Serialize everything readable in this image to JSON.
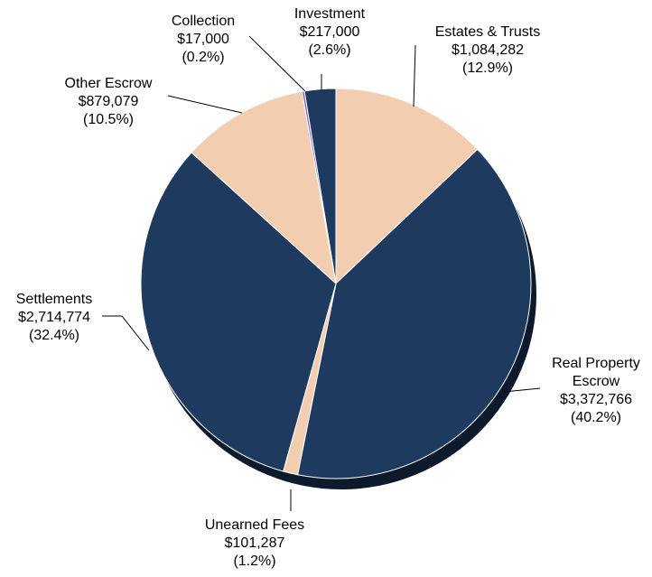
{
  "chart_data": {
    "type": "pie",
    "categories": [
      "Estates & Trusts",
      "Real Property Escrow",
      "Unearned Fees",
      "Settlements",
      "Other Escrow",
      "Collection",
      "Investment"
    ],
    "values": [
      1084282,
      3372766,
      101287,
      2714774,
      879079,
      17000,
      217000
    ],
    "value_labels": [
      "$1,084,282",
      "$3,372,766",
      "$101,287",
      "$2,714,774",
      "$879,079",
      "$17,000",
      "$217,000"
    ],
    "percent_labels": [
      "(12.9%)",
      "(40.2%)",
      "(1.2%)",
      "(32.4%)",
      "(10.5%)",
      "(0.2%)",
      "(2.6%)"
    ],
    "colors": [
      "#f2cdb0",
      "#1f3a5f",
      "#f2cdb0",
      "#1f3a5f",
      "#f2cdb0",
      "#8a6fd0",
      "#1f3a5f"
    ]
  }
}
